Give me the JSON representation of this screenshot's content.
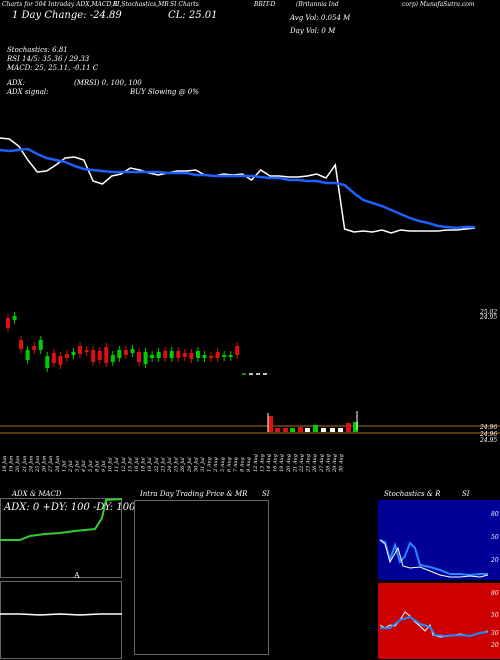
{
  "header": {
    "line1_left": "Charts for 504 Intraday ADX,MACD,R",
    "line1_mid": "SI,Stochastics,MR",
    "line1_s": "SI Charts",
    "line1_brit": "BRIT-D",
    "line1_right_a": "(Britannia Ind",
    "line1_right_b": "corp) MunafaSutra.com",
    "day_text": "1 Day Change: -24.89",
    "close_text": "CL: 25.01",
    "avg_vol_text": "Avg Vol: 0.054  M",
    "day_vol_text": "Day Vol: 0   M"
  },
  "indicators": {
    "stoch": "Stochastics: 6.81",
    "rsi": "RSI 14/5: 35.36  / 29.33",
    "macd": "MACD: 25, 25.11, -0.11 C",
    "adx": "ADX:",
    "mrsi": "(MRSI) 0,  100,  100",
    "adx_signal": "ADX  signal:",
    "buy_signal": "BUY Slowing @ 0%"
  },
  "price_axis": {
    "top_labels": [
      "25.02",
      "24.95"
    ],
    "bottom_labels": [
      "24.96",
      "24.96",
      "24.95"
    ]
  },
  "dates": [
    "18 Jun",
    "19 Jun",
    "20 Jun",
    "21 Jun",
    "24 Jun",
    "25 Jun",
    "26 Jun",
    "27 Jun",
    "28 Jun",
    "1 Jul",
    "2 Jul",
    "3 Jul",
    "4 Jul",
    "5 Jul",
    "8 Jul",
    "9 Jul",
    "10 Jul",
    "11 Jul",
    "12 Jul",
    "15 Jul",
    "16 Jul",
    "18 Jul",
    "19 Jul",
    "22 Jul",
    "23 Jul",
    "24 Jul",
    "25 Jul",
    "26 Jul",
    "29 Jul",
    "30 Jul",
    "31 Jul",
    "1 Aug",
    "2 Aug",
    "5 Aug",
    "6 Aug",
    "7 Aug",
    "8 Aug",
    "9 Aug",
    "12 Aug",
    "13 Aug",
    "14 Aug",
    "16 Aug",
    "19 Aug",
    "20 Aug",
    "21 Aug",
    "22 Aug",
    "23 Aug",
    "26 Aug",
    "27 Aug",
    "28 Aug",
    "29 Aug",
    "30 Aug"
  ],
  "bottom_panels": {
    "adx_title": "ADX  & MACD",
    "adx_values": "ADX: 0   +DY: 100   -DY: 100",
    "intraday_title": "Intra  Day Trading Price  & MR",
    "intraday_si": "SI",
    "stoch_title": "Stochastics & R",
    "stoch_si": "SI",
    "stoch_axis": [
      "80",
      "50",
      "20"
    ],
    "rsi_axis": [
      "80",
      "50",
      "30",
      "20"
    ]
  },
  "colors": {
    "background": "#000000",
    "ma_line": "#1f5fff",
    "price_line": "#ffffff",
    "bull": "#00cc00",
    "bear": "#dd1111",
    "adx_green": "#33cc33",
    "stoch_panel": "#000099",
    "rsi_panel": "#cc0000",
    "grid": "#b26b1a"
  },
  "chart_data": [
    {
      "type": "line",
      "x": [
        "18 Jun",
        "19 Jun",
        "20 Jun",
        "21 Jun",
        "24 Jun",
        "25 Jun",
        "26 Jun",
        "27 Jun",
        "28 Jun",
        "1 Jul",
        "2 Jul",
        "3 Jul",
        "4 Jul",
        "5 Jul",
        "8 Jul",
        "9 Jul",
        "10 Jul",
        "11 Jul",
        "12 Jul",
        "15 Jul",
        "16 Jul",
        "18 Jul",
        "19 Jul",
        "22 Jul",
        "23 Jul",
        "24 Jul",
        "25 Jul",
        "26 Jul",
        "29 Jul",
        "30 Jul",
        "31 Jul",
        "1 Aug",
        "2 Aug",
        "5 Aug",
        "6 Aug",
        "7 Aug",
        "8 Aug",
        "9 Aug",
        "12 Aug",
        "13 Aug",
        "14 Aug",
        "16 Aug",
        "19 Aug",
        "20 Aug",
        "21 Aug",
        "22 Aug",
        "23 Aug",
        "26 Aug",
        "27 Aug",
        "28 Aug",
        "29 Aug",
        "30 Aug"
      ],
      "series": [
        {
          "values": [
            138,
            139,
            146,
            160,
            172,
            171,
            165,
            158,
            157,
            160,
            181,
            184,
            176,
            174,
            168,
            170,
            173,
            175,
            173,
            171,
            171,
            170,
            175,
            176,
            174,
            175,
            174,
            180,
            170,
            176,
            176,
            177,
            177,
            176,
            174,
            178,
            165,
            229,
            232,
            231,
            232,
            230,
            233,
            230,
            231,
            231,
            231,
            231,
            230,
            230,
            229,
            228
          ]
        },
        {
          "values": [
            150,
            151,
            150,
            149,
            154,
            158,
            160,
            162,
            166,
            169,
            170,
            171,
            172,
            172,
            172,
            172,
            172,
            172,
            173,
            173,
            173,
            175,
            175,
            176,
            176,
            176,
            176,
            176,
            177,
            178,
            178,
            180,
            180,
            181,
            181,
            183,
            183,
            185,
            193,
            200,
            203,
            206,
            210,
            214,
            218,
            221,
            223,
            226,
            227,
            228,
            227,
            227
          ]
        }
      ]
    },
    {
      "type": "bar",
      "categories": [
        "18 Jun",
        "19 Jun",
        "20 Jun",
        "21 Jun",
        "24 Jun",
        "25 Jun",
        "26 Jun",
        "27 Jun",
        "28 Jun",
        "1 Jul",
        "2 Jul",
        "3 Jul",
        "4 Jul",
        "5 Jul",
        "8 Jul",
        "9 Jul",
        "10 Jul",
        "11 Jul",
        "12 Jul",
        "15 Jul",
        "16 Jul",
        "18 Jul",
        "19 Jul",
        "22 Jul",
        "23 Jul",
        "24 Jul",
        "25 Jul",
        "26 Jul",
        "29 Jul",
        "30 Jul",
        "31 Jul",
        "1 Aug",
        "2 Aug",
        "5 Aug",
        "6 Aug",
        "7 Aug"
      ],
      "series": [
        {
          "name": "open",
          "values": [
            318,
            320,
            340,
            360,
            346,
            350,
            368,
            353,
            356,
            354,
            355,
            346,
            350,
            350,
            351,
            347,
            362,
            358,
            350,
            353,
            352,
            364,
            358,
            358,
            351,
            358,
            351,
            353,
            353,
            358,
            358,
            356,
            352,
            356,
            357,
            346
          ]
        },
        {
          "name": "close",
          "values": [
            328,
            316,
            349,
            350,
            350,
            340,
            356,
            363,
            365,
            358,
            352,
            354,
            352,
            362,
            360,
            363,
            355,
            350,
            355,
            349,
            362,
            352,
            355,
            352,
            358,
            351,
            358,
            357,
            359,
            351,
            355,
            358,
            358,
            355,
            355,
            355
          ]
        }
      ]
    }
  ]
}
